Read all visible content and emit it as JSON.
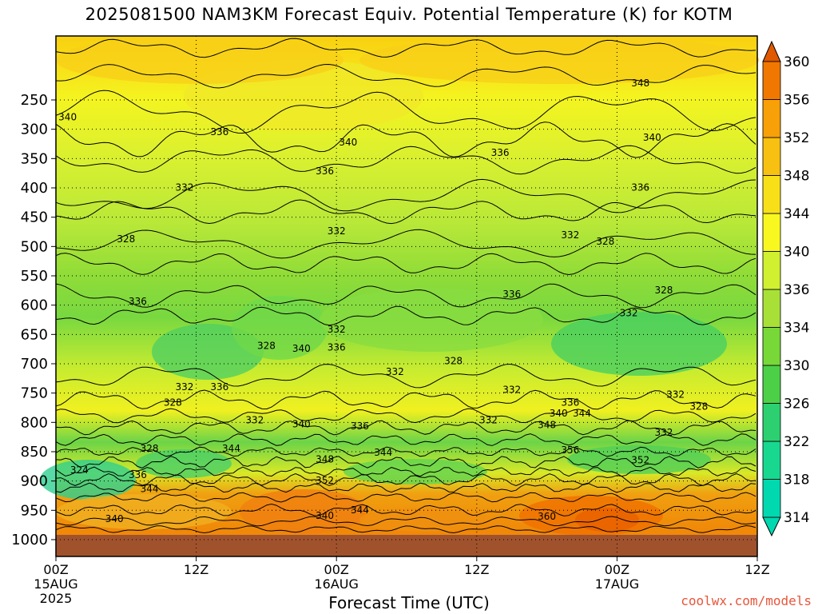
{
  "chart_data": {
    "type": "heatmap",
    "title": "2025081500 NAM3KM Forecast Equiv. Potential Temperature (K) for KOTM",
    "xlabel": "Forecast Time (UTC)",
    "ylabel": "",
    "x_ticks": [
      {
        "label": "00Z",
        "sub1": "15AUG",
        "sub2": "2025"
      },
      {
        "label": "12Z",
        "sub1": "",
        "sub2": ""
      },
      {
        "label": "00Z",
        "sub1": "16AUG",
        "sub2": ""
      },
      {
        "label": "12Z",
        "sub1": "",
        "sub2": ""
      },
      {
        "label": "00Z",
        "sub1": "17AUG",
        "sub2": ""
      },
      {
        "label": "12Z",
        "sub1": "",
        "sub2": ""
      }
    ],
    "x_hours": [
      0,
      12,
      24,
      36,
      48,
      60
    ],
    "xlim": [
      0,
      60
    ],
    "y_axis": "pressure (hPa), inverted",
    "y_ticks": [
      250,
      300,
      350,
      400,
      450,
      500,
      550,
      600,
      650,
      700,
      750,
      800,
      850,
      900,
      950,
      1000
    ],
    "ylim": [
      1000,
      200
    ],
    "grid": "dotted at y ticks",
    "colorbar": {
      "levels": [
        314,
        318,
        322,
        326,
        330,
        334,
        336,
        340,
        344,
        348,
        352,
        356,
        360
      ],
      "colors": [
        "#00d8b0",
        "#18d890",
        "#2cd070",
        "#4cd048",
        "#78d838",
        "#a8e038",
        "#d0f030",
        "#f8f820",
        "#f8e018",
        "#f8c010",
        "#f8a008",
        "#f07800",
        "#e05800"
      ]
    },
    "contour_labels": [
      {
        "text": "348",
        "h": 50,
        "p": 222
      },
      {
        "text": "340",
        "h": 1,
        "p": 280
      },
      {
        "text": "336",
        "h": 14,
        "p": 305
      },
      {
        "text": "340",
        "h": 25,
        "p": 323
      },
      {
        "text": "340",
        "h": 51,
        "p": 315
      },
      {
        "text": "336",
        "h": 38,
        "p": 341
      },
      {
        "text": "336",
        "h": 23,
        "p": 372
      },
      {
        "text": "332",
        "h": 11,
        "p": 400
      },
      {
        "text": "336",
        "h": 50,
        "p": 400
      },
      {
        "text": "332",
        "h": 24,
        "p": 474
      },
      {
        "text": "332",
        "h": 44,
        "p": 481
      },
      {
        "text": "328",
        "h": 6,
        "p": 488
      },
      {
        "text": "328",
        "h": 47,
        "p": 492
      },
      {
        "text": "336",
        "h": 7,
        "p": 594
      },
      {
        "text": "336",
        "h": 39,
        "p": 582
      },
      {
        "text": "328",
        "h": 52,
        "p": 575
      },
      {
        "text": "332",
        "h": 49,
        "p": 614
      },
      {
        "text": "332",
        "h": 24,
        "p": 642
      },
      {
        "text": "328",
        "h": 18,
        "p": 670
      },
      {
        "text": "340",
        "h": 21,
        "p": 675
      },
      {
        "text": "336",
        "h": 24,
        "p": 673
      },
      {
        "text": "328",
        "h": 34,
        "p": 696
      },
      {
        "text": "332",
        "h": 29,
        "p": 714
      },
      {
        "text": "332",
        "h": 11,
        "p": 740
      },
      {
        "text": "336",
        "h": 14,
        "p": 740
      },
      {
        "text": "332",
        "h": 39,
        "p": 745
      },
      {
        "text": "336",
        "h": 44,
        "p": 767
      },
      {
        "text": "332",
        "h": 53,
        "p": 753
      },
      {
        "text": "328",
        "h": 10,
        "p": 767
      },
      {
        "text": "328",
        "h": 55,
        "p": 774
      },
      {
        "text": "340",
        "h": 43,
        "p": 785
      },
      {
        "text": "344",
        "h": 45,
        "p": 785
      },
      {
        "text": "332",
        "h": 17,
        "p": 797
      },
      {
        "text": "340",
        "h": 21,
        "p": 804
      },
      {
        "text": "336",
        "h": 26,
        "p": 807
      },
      {
        "text": "332",
        "h": 37,
        "p": 797
      },
      {
        "text": "348",
        "h": 42,
        "p": 805
      },
      {
        "text": "332",
        "h": 52,
        "p": 818
      },
      {
        "text": "344",
        "h": 15,
        "p": 845
      },
      {
        "text": "328",
        "h": 8,
        "p": 845
      },
      {
        "text": "344",
        "h": 28,
        "p": 852
      },
      {
        "text": "356",
        "h": 44,
        "p": 848
      },
      {
        "text": "352",
        "h": 50,
        "p": 865
      },
      {
        "text": "348",
        "h": 23,
        "p": 864
      },
      {
        "text": "324",
        "h": 2,
        "p": 882
      },
      {
        "text": "336",
        "h": 7,
        "p": 890
      },
      {
        "text": "352",
        "h": 23,
        "p": 900
      },
      {
        "text": "344",
        "h": 8,
        "p": 914
      },
      {
        "text": "340",
        "h": 23,
        "p": 960
      },
      {
        "text": "344",
        "h": 26,
        "p": 950
      },
      {
        "text": "360",
        "h": 42,
        "p": 961
      },
      {
        "text": "340",
        "h": 5,
        "p": 965
      }
    ]
  },
  "credit": "coolwx.com/models"
}
